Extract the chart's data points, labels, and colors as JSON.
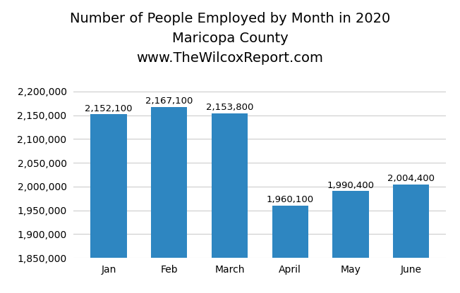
{
  "title": "Number of People Employed by Month in 2020\nMaricopa County\nwww.TheWilcoxReport.com",
  "categories": [
    "Jan",
    "Feb",
    "March",
    "April",
    "May",
    "June"
  ],
  "values": [
    2152100,
    2167100,
    2153800,
    1960100,
    1990400,
    2004400
  ],
  "bar_color": "#2E86C1",
  "ylim": [
    1850000,
    2220000
  ],
  "yticks": [
    1850000,
    1900000,
    1950000,
    2000000,
    2050000,
    2100000,
    2150000,
    2200000
  ],
  "label_values": [
    "2,152,100",
    "2,167,100",
    "2,153,800",
    "1,960,100",
    "1,990,400",
    "2,004,400"
  ],
  "background_color": "#ffffff",
  "title_fontsize": 14,
  "tick_fontsize": 10,
  "bar_label_fontsize": 9.5
}
